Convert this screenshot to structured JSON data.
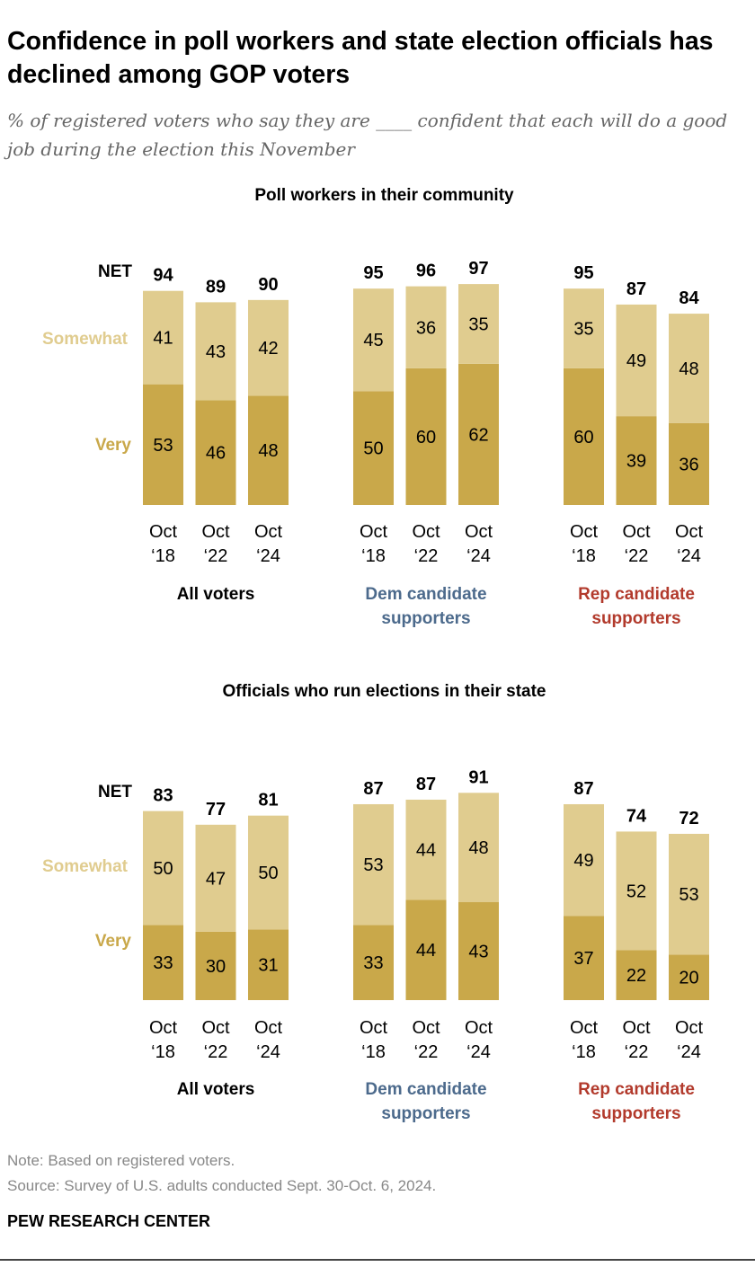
{
  "title": "Confidence in poll workers and state election officials has declined among GOP voters",
  "subtitle": "% of registered voters who say they are ____ confident that each will do a good job during the election this November",
  "colors": {
    "very": "#C9A84A",
    "somewhat": "#E0CC8F",
    "dem": "#4C6A8C",
    "rep": "#B23A2C",
    "label": "#000000"
  },
  "legend": {
    "net": "NET",
    "somewhat": "Somewhat",
    "very": "Very"
  },
  "chart_data": [
    {
      "type": "bar",
      "stacked": true,
      "title": "Poll workers in their community",
      "categories": [
        "Oct '18",
        "Oct '22",
        "Oct '24"
      ],
      "category_lines": [
        [
          "Oct",
          "‘18"
        ],
        [
          "Oct",
          "‘22"
        ],
        [
          "Oct",
          "‘24"
        ]
      ],
      "groups": [
        {
          "label": [
            "All voters"
          ],
          "color_key": "label",
          "very": [
            53,
            46,
            48
          ],
          "somewhat": [
            41,
            43,
            42
          ],
          "net": [
            94,
            89,
            90
          ]
        },
        {
          "label": [
            "Dem candidate",
            "supporters"
          ],
          "color_key": "dem",
          "very": [
            50,
            60,
            62
          ],
          "somewhat": [
            45,
            36,
            35
          ],
          "net": [
            95,
            96,
            97
          ]
        },
        {
          "label": [
            "Rep candidate",
            "supporters"
          ],
          "color_key": "rep",
          "very": [
            60,
            39,
            36
          ],
          "somewhat": [
            35,
            49,
            48
          ],
          "net": [
            95,
            87,
            84
          ]
        }
      ],
      "ylim": [
        0,
        100
      ]
    },
    {
      "type": "bar",
      "stacked": true,
      "title": "Officials who run elections in their state",
      "categories": [
        "Oct '18",
        "Oct '22",
        "Oct '24"
      ],
      "category_lines": [
        [
          "Oct",
          "‘18"
        ],
        [
          "Oct",
          "‘22"
        ],
        [
          "Oct",
          "‘24"
        ]
      ],
      "groups": [
        {
          "label": [
            "All voters"
          ],
          "color_key": "label",
          "very": [
            33,
            30,
            31
          ],
          "somewhat": [
            50,
            47,
            50
          ],
          "net": [
            83,
            77,
            81
          ]
        },
        {
          "label": [
            "Dem candidate",
            "supporters"
          ],
          "color_key": "dem",
          "very": [
            33,
            44,
            43
          ],
          "somewhat": [
            53,
            44,
            48
          ],
          "net": [
            87,
            87,
            91
          ]
        },
        {
          "label": [
            "Rep candidate",
            "supporters"
          ],
          "color_key": "rep",
          "very": [
            37,
            22,
            20
          ],
          "somewhat": [
            49,
            52,
            53
          ],
          "net": [
            87,
            74,
            72
          ]
        }
      ],
      "ylim": [
        0,
        100
      ]
    }
  ],
  "note": "Note: Based on registered voters.",
  "source": "Source: Survey of U.S. adults conducted Sept. 30-Oct. 6, 2024.",
  "brand": "PEW RESEARCH CENTER"
}
